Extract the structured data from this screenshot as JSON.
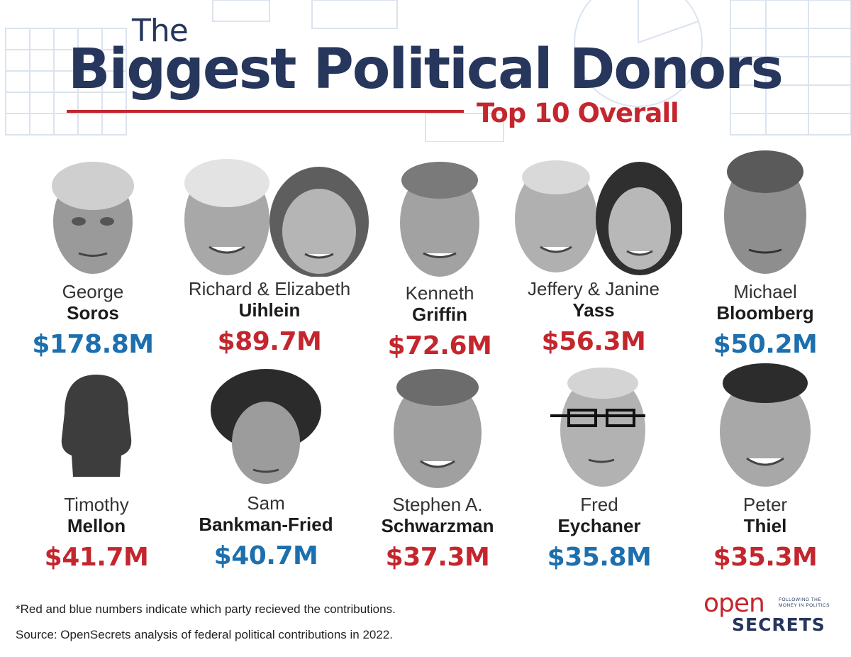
{
  "header": {
    "title_small": "The",
    "title_main": "Biggest Political Donors",
    "subtitle": "Top 10 Overall"
  },
  "colors": {
    "navy": "#26365c",
    "red": "#c4262e",
    "blue": "#1d6fae"
  },
  "donors": [
    {
      "first": "George",
      "last": "Soros",
      "amount": "$178.8M",
      "party": "blue"
    },
    {
      "first": "Richard & Elizabeth",
      "last": "Uihlein",
      "amount": "$89.7M",
      "party": "red"
    },
    {
      "first": "Kenneth",
      "last": "Griffin",
      "amount": "$72.6M",
      "party": "red"
    },
    {
      "first": "Jeffery & Janine",
      "last": "Yass",
      "amount": "$56.3M",
      "party": "red"
    },
    {
      "first": "Michael",
      "last": "Bloomberg",
      "amount": "$50.2M",
      "party": "blue"
    },
    {
      "first": "Timothy",
      "last": "Mellon",
      "amount": "$41.7M",
      "party": "red"
    },
    {
      "first": "Sam",
      "last": "Bankman-Fried",
      "amount": "$40.7M",
      "party": "blue"
    },
    {
      "first": "Stephen A.",
      "last": "Schwarzman",
      "amount": "$37.3M",
      "party": "red"
    },
    {
      "first": "Fred",
      "last": "Eychaner",
      "amount": "$35.8M",
      "party": "blue"
    },
    {
      "first": "Peter",
      "last": "Thiel",
      "amount": "$35.3M",
      "party": "red"
    }
  ],
  "footer": {
    "note": "*Red and blue numbers indicate which party recieved the contributions.",
    "source": "Source: OpenSecrets analysis of federal political contributions in 2022."
  },
  "logo": {
    "open": "open",
    "secrets": "SECRETS",
    "tagline": "FOLLOWING THE MONEY IN POLITICS"
  }
}
